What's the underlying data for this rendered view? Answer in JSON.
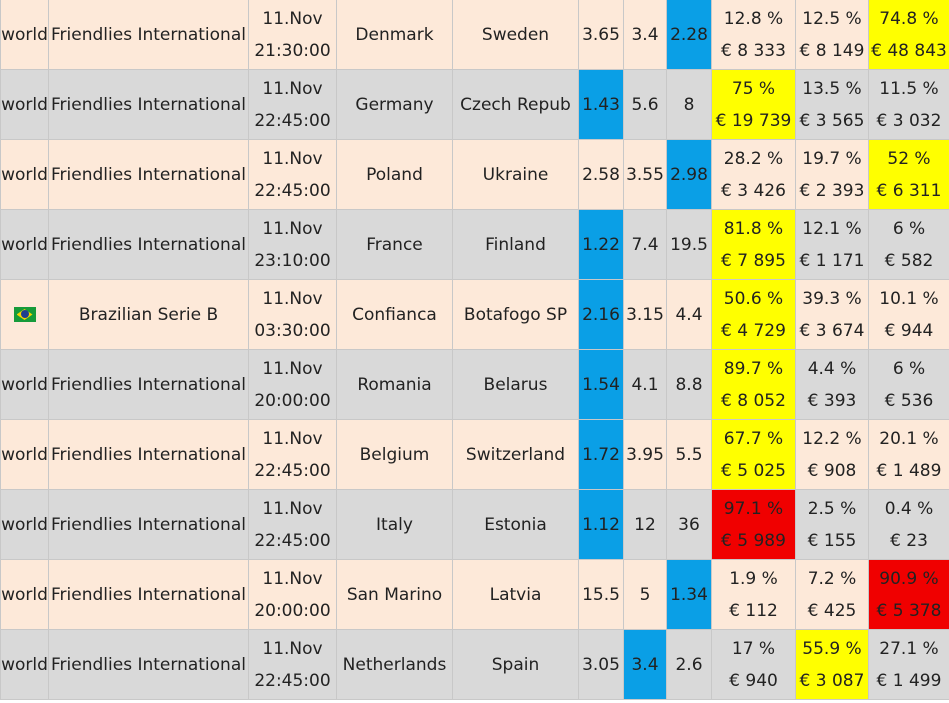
{
  "rows": [
    {
      "region": "world",
      "league": "Friendlies International",
      "date": "11.Nov",
      "time": "21:30:00",
      "home": "Denmark",
      "away": "Sweden",
      "odds": [
        "3.65",
        "3.4",
        "2.28"
      ],
      "pct": [
        "12.8 %",
        "12.5 %",
        "74.8 %"
      ],
      "money": [
        "€ 8 333",
        "€ 8 149",
        "€ 48 843"
      ]
    },
    {
      "region": "world",
      "league": "Friendlies International",
      "date": "11.Nov",
      "time": "22:45:00",
      "home": "Germany",
      "away": "Czech Repub",
      "odds": [
        "1.43",
        "5.6",
        "8"
      ],
      "pct": [
        "75 %",
        "13.5 %",
        "11.5 %"
      ],
      "money": [
        "€ 19 739",
        "€ 3 565",
        "€ 3 032"
      ]
    },
    {
      "region": "world",
      "league": "Friendlies International",
      "date": "11.Nov",
      "time": "22:45:00",
      "home": "Poland",
      "away": "Ukraine",
      "odds": [
        "2.58",
        "3.55",
        "2.98"
      ],
      "pct": [
        "28.2 %",
        "19.7 %",
        "52 %"
      ],
      "money": [
        "€ 3 426",
        "€ 2 393",
        "€ 6 311"
      ]
    },
    {
      "region": "world",
      "league": "Friendlies International",
      "date": "11.Nov",
      "time": "23:10:00",
      "home": "France",
      "away": "Finland",
      "odds": [
        "1.22",
        "7.4",
        "19.5"
      ],
      "pct": [
        "81.8 %",
        "12.1 %",
        "6 %"
      ],
      "money": [
        "€ 7 895",
        "€ 1 171",
        "€ 582"
      ]
    },
    {
      "region": "brazil-flag-icon",
      "league": "Brazilian Serie B",
      "date": "11.Nov",
      "time": "03:30:00",
      "home": "Confianca",
      "away": "Botafogo SP",
      "odds": [
        "2.16",
        "3.15",
        "4.4"
      ],
      "pct": [
        "50.6 %",
        "39.3 %",
        "10.1 %"
      ],
      "money": [
        "€ 4 729",
        "€ 3 674",
        "€ 944"
      ]
    },
    {
      "region": "world",
      "league": "Friendlies International",
      "date": "11.Nov",
      "time": "20:00:00",
      "home": "Romania",
      "away": "Belarus",
      "odds": [
        "1.54",
        "4.1",
        "8.8"
      ],
      "pct": [
        "89.7 %",
        "4.4 %",
        "6 %"
      ],
      "money": [
        "€ 8 052",
        "€ 393",
        "€ 536"
      ]
    },
    {
      "region": "world",
      "league": "Friendlies International",
      "date": "11.Nov",
      "time": "22:45:00",
      "home": "Belgium",
      "away": "Switzerland",
      "odds": [
        "1.72",
        "3.95",
        "5.5"
      ],
      "pct": [
        "67.7 %",
        "12.2 %",
        "20.1 %"
      ],
      "money": [
        "€ 5 025",
        "€ 908",
        "€ 1 489"
      ]
    },
    {
      "region": "world",
      "league": "Friendlies International",
      "date": "11.Nov",
      "time": "22:45:00",
      "home": "Italy",
      "away": "Estonia",
      "odds": [
        "1.12",
        "12",
        "36"
      ],
      "pct": [
        "97.1 %",
        "2.5 %",
        "0.4 %"
      ],
      "money": [
        "€ 5 989",
        "€ 155",
        "€ 23"
      ]
    },
    {
      "region": "world",
      "league": "Friendlies International",
      "date": "11.Nov",
      "time": "20:00:00",
      "home": "San Marino",
      "away": "Latvia",
      "odds": [
        "15.5",
        "5",
        "1.34"
      ],
      "pct": [
        "1.9 %",
        "7.2 %",
        "90.9 %"
      ],
      "money": [
        "€ 112",
        "€ 425",
        "€ 5 378"
      ]
    },
    {
      "region": "world",
      "league": "Friendlies International",
      "date": "11.Nov",
      "time": "22:45:00",
      "home": "Netherlands",
      "away": "Spain",
      "odds": [
        "3.05",
        "3.4",
        "2.6"
      ],
      "pct": [
        "17 %",
        "55.9 %",
        "27.1 %"
      ],
      "money": [
        "€ 940",
        "€ 3 087",
        "€ 1 499"
      ]
    }
  ],
  "highlights": {
    "colors": {
      "blue": "#0a9fe6",
      "yellow": "#ffff00",
      "red": "#f00000",
      "odd_row": "#fde9d9",
      "even_row": "#d9d9d9"
    },
    "odds_blue": [
      2,
      0,
      2,
      0,
      0,
      0,
      0,
      0,
      2,
      1
    ],
    "pct_marks": [
      [
        null,
        null,
        "yellow"
      ],
      [
        "yellow",
        null,
        null
      ],
      [
        null,
        null,
        "yellow"
      ],
      [
        "yellow",
        null,
        null
      ],
      [
        "yellow",
        null,
        null
      ],
      [
        "yellow",
        null,
        null
      ],
      [
        "yellow",
        null,
        null
      ],
      [
        "red",
        null,
        null
      ],
      [
        null,
        null,
        "red"
      ],
      [
        null,
        "yellow",
        null
      ]
    ]
  }
}
